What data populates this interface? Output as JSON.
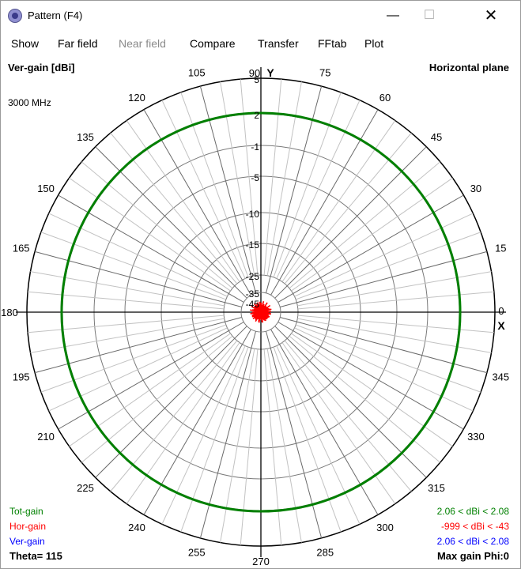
{
  "window": {
    "title": "Pattern   (F4)",
    "controls": {
      "minimize": "—",
      "maximize": "☐",
      "close": "✕"
    }
  },
  "menu": [
    {
      "label": "Show",
      "enabled": true
    },
    {
      "label": "Far field",
      "enabled": true
    },
    {
      "label": "Near field",
      "enabled": false
    },
    {
      "label": "Compare",
      "enabled": true
    },
    {
      "label": "Transfer",
      "enabled": true
    },
    {
      "label": "FFtab",
      "enabled": true
    },
    {
      "label": "Plot",
      "enabled": true
    }
  ],
  "plot": {
    "y_label": "Ver-gain [dBi]",
    "plane": "Horizontal plane",
    "frequency": "3000 MHz",
    "axis_y": "Y",
    "axis_x": "X",
    "theta": "Theta= 115",
    "max_gain": "Max gain Phi:0",
    "legend": [
      {
        "name": "Tot-gain",
        "range": "2.06 < dBi < 2.08",
        "color": "#008000"
      },
      {
        "name": "Hor-gain",
        "range": "-999 < dBi < -43",
        "color": "#ff0000"
      },
      {
        "name": "Ver-gain",
        "range": "2.06 < dBi < 2.08",
        "color": "#0000ff"
      }
    ]
  },
  "chart_data": {
    "type": "polar",
    "angle_labels": [
      "0",
      "15",
      "30",
      "45",
      "60",
      "75",
      "90",
      "105",
      "120",
      "135",
      "150",
      "165",
      "180",
      "195",
      "210",
      "225",
      "240",
      "255",
      "270",
      "285",
      "300",
      "315",
      "330",
      "345"
    ],
    "radial_labels": [
      "5",
      "2",
      "-1",
      "-5",
      "-10",
      "-15",
      "-25",
      "-35",
      "-45"
    ],
    "series": [
      {
        "name": "Tot-gain",
        "gain_dbi": 2.07,
        "color": "#008000"
      },
      {
        "name": "Hor-gain",
        "gain_dbi": -43,
        "color": "#ff0000"
      }
    ],
    "grid": true
  }
}
